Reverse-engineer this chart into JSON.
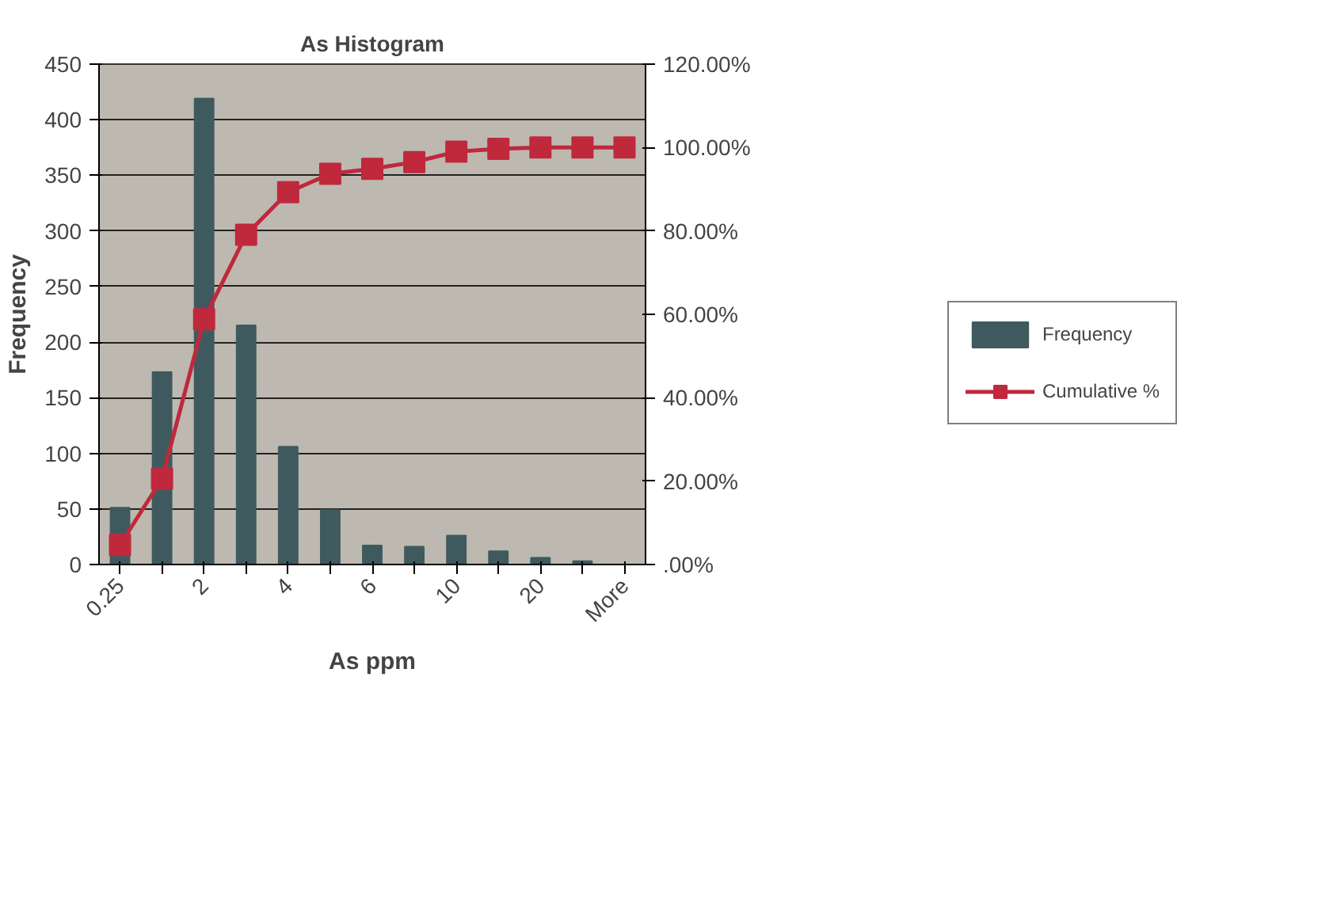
{
  "chart_data": {
    "type": "bar",
    "title": "As Histogram",
    "xlabel": "As ppm",
    "ylabel": "Frequency",
    "categories": [
      "0.25",
      null,
      "2",
      null,
      "4",
      null,
      "6",
      null,
      "10",
      null,
      "20",
      null,
      "More"
    ],
    "series": [
      {
        "name": "Frequency",
        "color": "#3f5a5f",
        "values": [
          51,
          173,
          419,
          215,
          106,
          49,
          17,
          16,
          26,
          12,
          6,
          3,
          0
        ]
      },
      {
        "name": "Cumulative %",
        "type": "line",
        "axis": "y2",
        "color": "#c0283c",
        "values": [
          4.7,
          20.6,
          58.8,
          79.1,
          89.3,
          93.7,
          94.9,
          96.5,
          99,
          99.7,
          100,
          100,
          100
        ]
      }
    ],
    "ylim": [
      0,
      450
    ],
    "yticks": [
      0,
      50,
      100,
      150,
      200,
      250,
      300,
      350,
      400,
      450
    ],
    "y2lim": [
      0,
      120
    ],
    "y2ticks": [
      {
        "value": 0,
        "label": ".00%"
      },
      {
        "value": 20,
        "label": "20.00%"
      },
      {
        "value": 40,
        "label": "40.00%"
      },
      {
        "value": 60,
        "label": "60.00%"
      },
      {
        "value": 80,
        "label": "80.00%"
      },
      {
        "value": 100,
        "label": "100.00%"
      },
      {
        "value": 120,
        "label": "120.00%"
      }
    ],
    "grid": "y",
    "legend": "right",
    "marker": "square",
    "line_style": "solid"
  }
}
